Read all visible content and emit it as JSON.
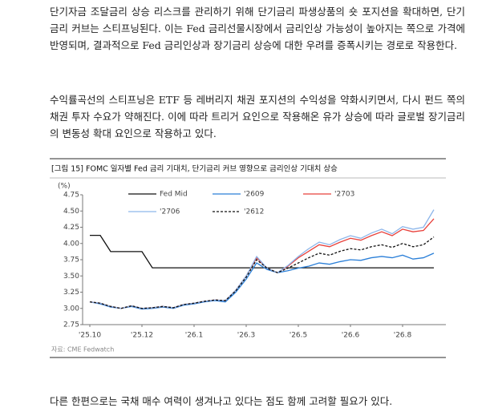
{
  "paragraphs": [
    "단기자금 조달금리 상승 리스크를 관리하기 위해 단기금리 파생상품의 숏 포지션을 확대하면, 단기금리 커브는 스티프닝된다. 이는 Fed 금리선물시장에서 금리인상 가능성이 높아지는 쪽으로 가격에 반영되며, 결과적으로 Fed 금리인상과 장기금리 상승에 대한 우려를 증폭시키는 경로로 작용한다.",
    "수익률곡선의 스티프닝은 ETF 등 레버리지 채권 포지션의 수익성을 약화시키면서, 다시 펀드 쪽의 채권 투자 수요가 약해진다. 이에 따라 트리거 요인으로 작용해온 유가 상승에 따라 글로벌 장기금리의 변동성 확대 요인으로 작용하고 있다."
  ],
  "figure_title": "[그림 15] FOMC 일자별 Fed 금리 기대치, 단기금리 커브 영향으로 금리인상 기대치 상승",
  "source": "자료: CME Fedwatch",
  "closing": "다른 한편으로는 국채 매수 여력이 생겨나고 있다는 점도 함께 고려할 필요가 있다.",
  "chart_data": {
    "type": "line",
    "y_unit_label": "(%)",
    "categories": [
      "'25.10",
      null,
      null,
      null,
      null,
      "'25.12",
      null,
      null,
      null,
      null,
      "'26.1",
      null,
      null,
      null,
      null,
      "'26.3",
      null,
      null,
      null,
      null,
      "'26.5",
      null,
      null,
      null,
      null,
      "'26.6",
      null,
      null,
      null,
      null,
      "'26.8",
      null,
      null,
      null
    ],
    "ylim": [
      2.75,
      4.75
    ],
    "yticks": [
      2.75,
      {
        "value": 3,
        "label": "3.00"
      },
      3.25,
      {
        "value": 3.5,
        "label": "3.50"
      },
      3.75,
      {
        "value": 4,
        "label": "4.00"
      },
      4.25,
      {
        "value": 4.5,
        "label": "4.50"
      },
      4.75
    ],
    "series": [
      {
        "name": "Fed Mid",
        "color": "#111111",
        "dashed": false,
        "values": [
          4.125,
          4.125,
          3.875,
          3.875,
          3.875,
          3.875,
          3.625,
          3.625,
          3.625,
          3.625,
          3.625,
          3.625,
          3.625,
          3.625,
          3.625,
          3.625,
          3.625,
          3.625,
          3.625,
          3.625,
          3.625,
          3.625,
          3.625,
          3.625,
          3.625,
          3.625,
          3.625,
          3.625,
          3.625,
          3.625,
          3.625,
          3.625,
          3.625,
          3.625
        ]
      },
      {
        "name": "'2609",
        "color": "#2a7fd8",
        "dashed": false,
        "values": [
          3.1,
          3.07,
          3.02,
          3.0,
          3.03,
          2.99,
          3.0,
          3.02,
          3.0,
          3.05,
          3.07,
          3.1,
          3.12,
          3.1,
          3.25,
          3.45,
          3.7,
          3.6,
          3.55,
          3.58,
          3.62,
          3.65,
          3.7,
          3.68,
          3.72,
          3.75,
          3.74,
          3.78,
          3.8,
          3.78,
          3.82,
          3.76,
          3.78,
          3.85
        ]
      },
      {
        "name": "'2703",
        "color": "#e8403a",
        "dashed": false,
        "values": [
          3.1,
          3.08,
          3.03,
          3.0,
          3.04,
          3.0,
          3.01,
          3.03,
          3.01,
          3.06,
          3.08,
          3.11,
          3.13,
          3.12,
          3.28,
          3.5,
          3.78,
          3.62,
          3.55,
          3.65,
          3.78,
          3.88,
          3.98,
          3.95,
          4.02,
          4.08,
          4.05,
          4.12,
          4.18,
          4.12,
          4.22,
          4.18,
          4.2,
          4.38
        ]
      },
      {
        "name": "'2706",
        "color": "#8db6ea",
        "dashed": false,
        "values": [
          3.1,
          3.08,
          3.03,
          3.0,
          3.04,
          3.0,
          3.01,
          3.03,
          3.01,
          3.06,
          3.08,
          3.11,
          3.13,
          3.12,
          3.28,
          3.5,
          3.8,
          3.62,
          3.55,
          3.66,
          3.8,
          3.92,
          4.02,
          3.98,
          4.06,
          4.12,
          4.08,
          4.16,
          4.22,
          4.15,
          4.26,
          4.22,
          4.25,
          4.52
        ]
      },
      {
        "name": "'2612",
        "color": "#111111",
        "dashed": true,
        "values": [
          3.1,
          3.08,
          3.03,
          3.0,
          3.04,
          3.0,
          3.01,
          3.03,
          3.01,
          3.06,
          3.08,
          3.11,
          3.13,
          3.12,
          3.27,
          3.48,
          3.75,
          3.62,
          3.55,
          3.62,
          3.7,
          3.78,
          3.85,
          3.82,
          3.88,
          3.92,
          3.9,
          3.95,
          3.98,
          3.94,
          4.0,
          3.95,
          3.98,
          4.1
        ]
      }
    ]
  }
}
